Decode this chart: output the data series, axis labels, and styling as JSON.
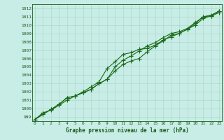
{
  "xlabel": "Graphe pression niveau de la mer (hPa)",
  "ylim": [
    998.5,
    1012.5
  ],
  "xlim": [
    -0.3,
    23.3
  ],
  "yticks": [
    999,
    1000,
    1001,
    1002,
    1003,
    1004,
    1005,
    1006,
    1007,
    1008,
    1009,
    1010,
    1011,
    1012
  ],
  "xticks": [
    0,
    1,
    2,
    3,
    4,
    5,
    6,
    7,
    8,
    9,
    10,
    11,
    12,
    13,
    14,
    15,
    16,
    17,
    18,
    19,
    20,
    21,
    22,
    23
  ],
  "line1": [
    998.7,
    999.5,
    999.8,
    1000.4,
    1001.0,
    1001.5,
    1002.0,
    1002.6,
    1003.2,
    1004.8,
    1005.6,
    1006.5,
    1006.7,
    1007.1,
    1007.2,
    1007.6,
    1008.2,
    1008.6,
    1009.0,
    1009.5,
    1010.2,
    1011.0,
    1011.1,
    1011.5
  ],
  "line2": [
    998.7,
    999.3,
    999.9,
    1000.5,
    1001.3,
    1001.5,
    1001.9,
    1002.3,
    1003.0,
    1003.5,
    1005.0,
    1005.8,
    1006.3,
    1006.9,
    1007.5,
    1007.9,
    1008.5,
    1009.0,
    1009.2,
    1009.6,
    1010.3,
    1011.0,
    1011.2,
    1011.7
  ],
  "line3": [
    998.7,
    999.3,
    999.9,
    1000.5,
    1001.3,
    1001.5,
    1001.9,
    1002.3,
    1003.0,
    1003.5,
    1004.5,
    1005.3,
    1005.7,
    1006.0,
    1006.8,
    1007.5,
    1008.1,
    1008.8,
    1009.0,
    1009.5,
    1010.0,
    1010.8,
    1011.1,
    1011.7
  ],
  "line_color": "#1a6b1a",
  "bg_color": "#c8ece6",
  "grid_color": "#b0d8cc",
  "text_color": "#1a5c1a",
  "marker": "+",
  "marker_size": 4,
  "linewidth": 0.8
}
